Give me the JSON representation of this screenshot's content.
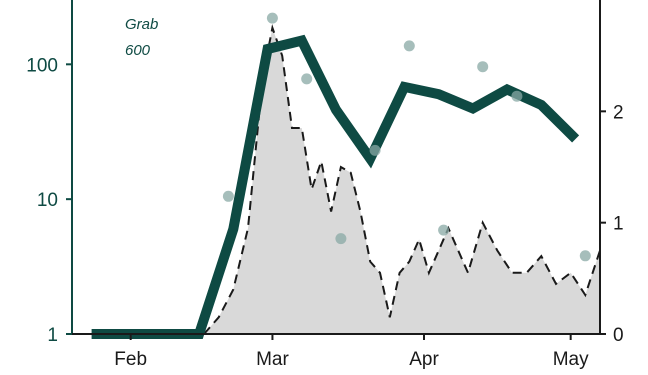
{
  "chart_data": {
    "type": "line",
    "x_ticks": [
      "Feb",
      "Mar",
      "Apr",
      "May"
    ],
    "x_tick_dates": [
      "2020-02-01",
      "2020-03-01",
      "2020-04-01",
      "2020-05-01"
    ],
    "x_range": [
      "2020-01-20",
      "2020-05-07"
    ],
    "y_left": {
      "scale": "log",
      "range": [
        1,
        300
      ],
      "ticks": [
        "1",
        "10",
        "100"
      ],
      "tick_values": [
        1,
        10,
        100
      ]
    },
    "y_right": {
      "scale": "linear",
      "range": [
        0,
        3
      ],
      "ticks": [
        "0",
        "1",
        "2"
      ],
      "tick_values": [
        0,
        1,
        2
      ]
    },
    "annotation": {
      "line1": "Grab",
      "line2": "600"
    },
    "grid": false,
    "colors": {
      "thick_line": "#0e4a43",
      "points": "#88a8a4",
      "area_fill": "#d9d9d9",
      "dashed": "#1a1a1a",
      "axis": "#0e4a43"
    },
    "series": [
      {
        "axis": "left",
        "style": "thick-line",
        "x": [
          "2020-01-24",
          "2020-02-01",
          "2020-02-08",
          "2020-02-15",
          "2020-02-22",
          "2020-02-29",
          "2020-03-07",
          "2020-03-14",
          "2020-03-21",
          "2020-03-28",
          "2020-04-04",
          "2020-04-11",
          "2020-04-18",
          "2020-04-25",
          "2020-05-02"
        ],
        "y": [
          1,
          1,
          1,
          1,
          6,
          130,
          150,
          46,
          20,
          68,
          60,
          47,
          65,
          50,
          28
        ]
      },
      {
        "axis": "left",
        "style": "points",
        "x": [
          "2020-02-21",
          "2020-03-01",
          "2020-03-08",
          "2020-03-15",
          "2020-03-22",
          "2020-03-29",
          "2020-04-05",
          "2020-04-13",
          "2020-04-20",
          "2020-05-04"
        ],
        "y": [
          10.5,
          220,
          78,
          5.1,
          23,
          137,
          5.9,
          96,
          58,
          3.8
        ]
      },
      {
        "axis": "right",
        "style": "dashed-area",
        "x": [
          "2020-02-16",
          "2020-02-19",
          "2020-02-22",
          "2020-02-25",
          "2020-02-28",
          "2020-03-01",
          "2020-03-03",
          "2020-03-05",
          "2020-03-07",
          "2020-03-09",
          "2020-03-11",
          "2020-03-13",
          "2020-03-15",
          "2020-03-17",
          "2020-03-19",
          "2020-03-21",
          "2020-03-23",
          "2020-03-25",
          "2020-03-27",
          "2020-03-29",
          "2020-03-31",
          "2020-04-02",
          "2020-04-04",
          "2020-04-06",
          "2020-04-08",
          "2020-04-10",
          "2020-04-13",
          "2020-04-16",
          "2020-04-19",
          "2020-04-22",
          "2020-04-25",
          "2020-04-28",
          "2020-05-01",
          "2020-05-04",
          "2020-05-07"
        ],
        "y": [
          0,
          0.15,
          0.4,
          0.95,
          2.3,
          2.75,
          2.5,
          1.85,
          1.85,
          1.3,
          1.55,
          1.1,
          1.5,
          1.45,
          1.1,
          0.65,
          0.55,
          0.15,
          0.55,
          0.65,
          0.85,
          0.55,
          0.75,
          0.95,
          0.75,
          0.55,
          1.0,
          0.75,
          0.55,
          0.55,
          0.7,
          0.45,
          0.55,
          0.35,
          0.75
        ]
      }
    ]
  }
}
